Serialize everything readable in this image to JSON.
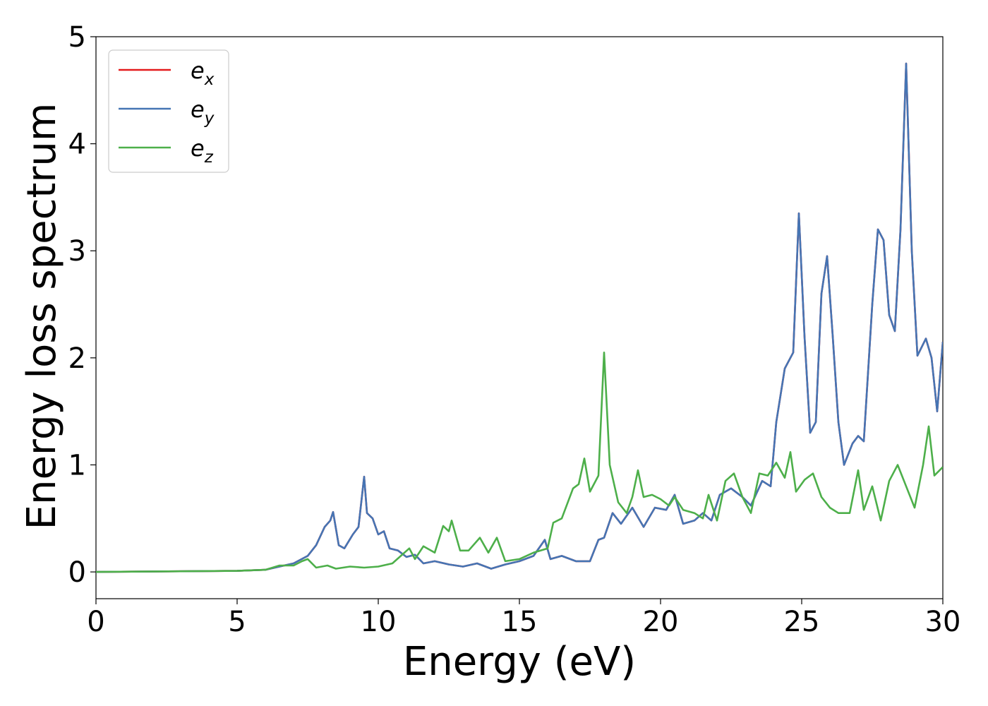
{
  "chart_data": {
    "type": "line",
    "xlabel": "Energy (eV)",
    "ylabel": "Energy loss spectrum",
    "xlim": [
      0,
      30
    ],
    "ylim": [
      -0.25,
      5
    ],
    "xticks": [
      0,
      5,
      10,
      15,
      20,
      25,
      30
    ],
    "yticks": [
      0,
      1,
      2,
      3,
      4,
      5
    ],
    "xtick_labels": [
      "0",
      "5",
      "10",
      "15",
      "20",
      "25",
      "30"
    ],
    "ytick_labels": [
      "0",
      "1",
      "2",
      "3",
      "4",
      "5"
    ],
    "grid": false,
    "legend_position": "top-left",
    "series": [
      {
        "name": "e_x",
        "legend_base": "e",
        "legend_sub": "x",
        "color": "#e41a1c",
        "points": [
          [
            0,
            0
          ],
          [
            5,
            0.01
          ],
          [
            6,
            0.02
          ],
          [
            6.5,
            0.05
          ],
          [
            7,
            0.08
          ],
          [
            7.5,
            0.15
          ],
          [
            7.8,
            0.25
          ],
          [
            8.1,
            0.42
          ],
          [
            8.3,
            0.48
          ],
          [
            8.4,
            0.56
          ],
          [
            8.6,
            0.25
          ],
          [
            8.8,
            0.22
          ],
          [
            9.1,
            0.35
          ],
          [
            9.3,
            0.42
          ],
          [
            9.5,
            0.89
          ],
          [
            9.6,
            0.55
          ],
          [
            9.8,
            0.5
          ],
          [
            10.0,
            0.35
          ],
          [
            10.2,
            0.38
          ],
          [
            10.4,
            0.22
          ],
          [
            10.7,
            0.2
          ],
          [
            11.0,
            0.14
          ],
          [
            11.3,
            0.16
          ],
          [
            11.6,
            0.08
          ],
          [
            12.0,
            0.1
          ],
          [
            12.5,
            0.07
          ],
          [
            13.0,
            0.05
          ],
          [
            13.5,
            0.08
          ],
          [
            14.0,
            0.03
          ],
          [
            14.5,
            0.07
          ],
          [
            15.0,
            0.1
          ],
          [
            15.5,
            0.15
          ],
          [
            15.9,
            0.3
          ],
          [
            16.1,
            0.12
          ],
          [
            16.5,
            0.15
          ],
          [
            17.0,
            0.1
          ],
          [
            17.5,
            0.1
          ],
          [
            17.8,
            0.3
          ],
          [
            18.0,
            0.32
          ],
          [
            18.3,
            0.55
          ],
          [
            18.6,
            0.45
          ],
          [
            19.0,
            0.6
          ],
          [
            19.4,
            0.42
          ],
          [
            19.8,
            0.6
          ],
          [
            20.2,
            0.58
          ],
          [
            20.5,
            0.72
          ],
          [
            20.8,
            0.45
          ],
          [
            21.2,
            0.48
          ],
          [
            21.5,
            0.55
          ],
          [
            21.8,
            0.48
          ],
          [
            22.1,
            0.72
          ],
          [
            22.5,
            0.78
          ],
          [
            22.9,
            0.7
          ],
          [
            23.2,
            0.62
          ],
          [
            23.6,
            0.85
          ],
          [
            23.9,
            0.8
          ],
          [
            24.1,
            1.4
          ],
          [
            24.4,
            1.9
          ],
          [
            24.7,
            2.05
          ],
          [
            24.9,
            3.35
          ],
          [
            25.1,
            2.2
          ],
          [
            25.3,
            1.3
          ],
          [
            25.5,
            1.4
          ],
          [
            25.7,
            2.6
          ],
          [
            25.9,
            2.95
          ],
          [
            26.1,
            2.2
          ],
          [
            26.3,
            1.4
          ],
          [
            26.5,
            1.0
          ],
          [
            26.8,
            1.2
          ],
          [
            27.0,
            1.27
          ],
          [
            27.2,
            1.22
          ],
          [
            27.5,
            2.5
          ],
          [
            27.7,
            3.2
          ],
          [
            27.9,
            3.1
          ],
          [
            28.1,
            2.4
          ],
          [
            28.3,
            2.25
          ],
          [
            28.5,
            3.2
          ],
          [
            28.7,
            4.75
          ],
          [
            28.9,
            3.0
          ],
          [
            29.1,
            2.02
          ],
          [
            29.4,
            2.18
          ],
          [
            29.6,
            2.0
          ],
          [
            29.8,
            1.5
          ],
          [
            30,
            2.15
          ]
        ]
      },
      {
        "name": "e_y",
        "legend_base": "e",
        "legend_sub": "y",
        "color": "#4575b4",
        "points": [
          [
            0,
            0
          ],
          [
            5,
            0.01
          ],
          [
            6,
            0.02
          ],
          [
            6.5,
            0.05
          ],
          [
            7,
            0.08
          ],
          [
            7.5,
            0.15
          ],
          [
            7.8,
            0.25
          ],
          [
            8.1,
            0.42
          ],
          [
            8.3,
            0.48
          ],
          [
            8.4,
            0.56
          ],
          [
            8.6,
            0.25
          ],
          [
            8.8,
            0.22
          ],
          [
            9.1,
            0.35
          ],
          [
            9.3,
            0.42
          ],
          [
            9.5,
            0.89
          ],
          [
            9.6,
            0.55
          ],
          [
            9.8,
            0.5
          ],
          [
            10.0,
            0.35
          ],
          [
            10.2,
            0.38
          ],
          [
            10.4,
            0.22
          ],
          [
            10.7,
            0.2
          ],
          [
            11.0,
            0.14
          ],
          [
            11.3,
            0.16
          ],
          [
            11.6,
            0.08
          ],
          [
            12.0,
            0.1
          ],
          [
            12.5,
            0.07
          ],
          [
            13.0,
            0.05
          ],
          [
            13.5,
            0.08
          ],
          [
            14.0,
            0.03
          ],
          [
            14.5,
            0.07
          ],
          [
            15.0,
            0.1
          ],
          [
            15.5,
            0.15
          ],
          [
            15.9,
            0.3
          ],
          [
            16.1,
            0.12
          ],
          [
            16.5,
            0.15
          ],
          [
            17.0,
            0.1
          ],
          [
            17.5,
            0.1
          ],
          [
            17.8,
            0.3
          ],
          [
            18.0,
            0.32
          ],
          [
            18.3,
            0.55
          ],
          [
            18.6,
            0.45
          ],
          [
            19.0,
            0.6
          ],
          [
            19.4,
            0.42
          ],
          [
            19.8,
            0.6
          ],
          [
            20.2,
            0.58
          ],
          [
            20.5,
            0.72
          ],
          [
            20.8,
            0.45
          ],
          [
            21.2,
            0.48
          ],
          [
            21.5,
            0.55
          ],
          [
            21.8,
            0.48
          ],
          [
            22.1,
            0.72
          ],
          [
            22.5,
            0.78
          ],
          [
            22.9,
            0.7
          ],
          [
            23.2,
            0.62
          ],
          [
            23.6,
            0.85
          ],
          [
            23.9,
            0.8
          ],
          [
            24.1,
            1.4
          ],
          [
            24.4,
            1.9
          ],
          [
            24.7,
            2.05
          ],
          [
            24.9,
            3.35
          ],
          [
            25.1,
            2.2
          ],
          [
            25.3,
            1.3
          ],
          [
            25.5,
            1.4
          ],
          [
            25.7,
            2.6
          ],
          [
            25.9,
            2.95
          ],
          [
            26.1,
            2.2
          ],
          [
            26.3,
            1.4
          ],
          [
            26.5,
            1.0
          ],
          [
            26.8,
            1.2
          ],
          [
            27.0,
            1.27
          ],
          [
            27.2,
            1.22
          ],
          [
            27.5,
            2.5
          ],
          [
            27.7,
            3.2
          ],
          [
            27.9,
            3.1
          ],
          [
            28.1,
            2.4
          ],
          [
            28.3,
            2.25
          ],
          [
            28.5,
            3.2
          ],
          [
            28.7,
            4.75
          ],
          [
            28.9,
            3.0
          ],
          [
            29.1,
            2.02
          ],
          [
            29.4,
            2.18
          ],
          [
            29.6,
            2.0
          ],
          [
            29.8,
            1.5
          ],
          [
            30,
            2.15
          ]
        ]
      },
      {
        "name": "e_z",
        "legend_base": "e",
        "legend_sub": "z",
        "color": "#4daf4a",
        "points": [
          [
            0,
            0
          ],
          [
            5,
            0.01
          ],
          [
            6,
            0.02
          ],
          [
            6.5,
            0.06
          ],
          [
            7,
            0.06
          ],
          [
            7.3,
            0.1
          ],
          [
            7.5,
            0.12
          ],
          [
            7.8,
            0.04
          ],
          [
            8.2,
            0.06
          ],
          [
            8.5,
            0.03
          ],
          [
            9.0,
            0.05
          ],
          [
            9.5,
            0.04
          ],
          [
            10.0,
            0.05
          ],
          [
            10.5,
            0.08
          ],
          [
            11.1,
            0.22
          ],
          [
            11.3,
            0.12
          ],
          [
            11.6,
            0.24
          ],
          [
            12.0,
            0.18
          ],
          [
            12.3,
            0.43
          ],
          [
            12.5,
            0.38
          ],
          [
            12.6,
            0.48
          ],
          [
            12.9,
            0.2
          ],
          [
            13.2,
            0.2
          ],
          [
            13.6,
            0.32
          ],
          [
            13.9,
            0.18
          ],
          [
            14.2,
            0.32
          ],
          [
            14.5,
            0.1
          ],
          [
            15.0,
            0.12
          ],
          [
            15.5,
            0.18
          ],
          [
            16.0,
            0.22
          ],
          [
            16.2,
            0.46
          ],
          [
            16.5,
            0.5
          ],
          [
            16.9,
            0.78
          ],
          [
            17.1,
            0.82
          ],
          [
            17.3,
            1.06
          ],
          [
            17.5,
            0.75
          ],
          [
            17.8,
            0.9
          ],
          [
            18.0,
            2.05
          ],
          [
            18.2,
            1.0
          ],
          [
            18.5,
            0.65
          ],
          [
            18.8,
            0.55
          ],
          [
            19.0,
            0.7
          ],
          [
            19.2,
            0.95
          ],
          [
            19.4,
            0.7
          ],
          [
            19.7,
            0.72
          ],
          [
            20.0,
            0.68
          ],
          [
            20.3,
            0.62
          ],
          [
            20.5,
            0.7
          ],
          [
            20.8,
            0.58
          ],
          [
            21.2,
            0.55
          ],
          [
            21.5,
            0.5
          ],
          [
            21.7,
            0.72
          ],
          [
            22.0,
            0.48
          ],
          [
            22.3,
            0.85
          ],
          [
            22.6,
            0.92
          ],
          [
            22.9,
            0.7
          ],
          [
            23.2,
            0.55
          ],
          [
            23.5,
            0.92
          ],
          [
            23.8,
            0.9
          ],
          [
            24.1,
            1.02
          ],
          [
            24.4,
            0.88
          ],
          [
            24.6,
            1.12
          ],
          [
            24.8,
            0.75
          ],
          [
            25.1,
            0.86
          ],
          [
            25.4,
            0.92
          ],
          [
            25.7,
            0.7
          ],
          [
            26.0,
            0.6
          ],
          [
            26.3,
            0.55
          ],
          [
            26.7,
            0.55
          ],
          [
            27.0,
            0.95
          ],
          [
            27.2,
            0.58
          ],
          [
            27.5,
            0.8
          ],
          [
            27.8,
            0.48
          ],
          [
            28.1,
            0.85
          ],
          [
            28.4,
            1.0
          ],
          [
            28.7,
            0.8
          ],
          [
            29.0,
            0.6
          ],
          [
            29.3,
            1.0
          ],
          [
            29.5,
            1.36
          ],
          [
            29.7,
            0.9
          ],
          [
            30,
            0.98
          ]
        ]
      }
    ]
  }
}
